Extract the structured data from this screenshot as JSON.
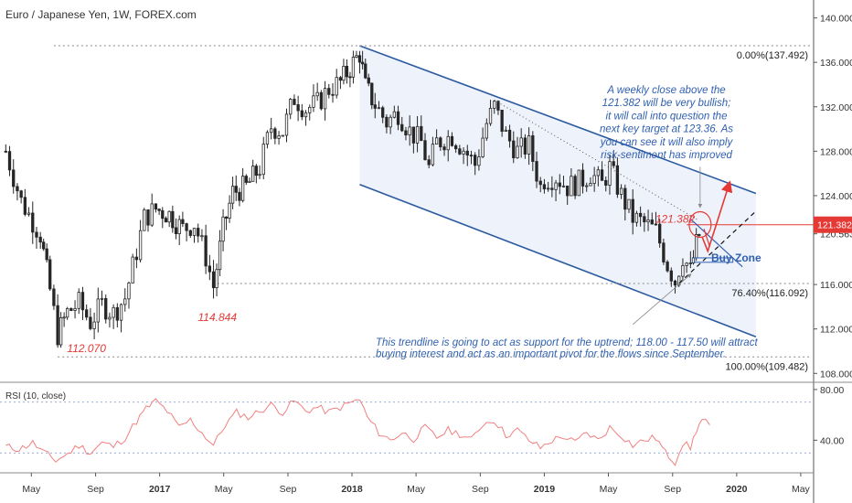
{
  "header": {
    "title": "Euro / Japanese Yen, 1W, FOREX.com"
  },
  "colors": {
    "background": "#ffffff",
    "candle": "#262626",
    "channel": "#2c5aa0",
    "channel_fill": "#eef2fb",
    "annotation_blue": "#3060b0",
    "annotation_red": "#e53935",
    "rsi_line": "#f08080",
    "rsi_levels": "#7a8fc8",
    "price_tag_bg": "#e53935",
    "axis_text": "#333333",
    "grid": "#888888"
  },
  "chart_data": [
    {
      "type": "candlestick",
      "title": "Euro / Japanese Yen, 1W, FOREX.com",
      "x_ticks": [
        "May",
        "Sep",
        "2017",
        "May",
        "Sep",
        "2018",
        "May",
        "Sep",
        "2019",
        "May",
        "Sep",
        "2020",
        "May"
      ],
      "y_ticks": [
        "140.000",
        "136.000",
        "132.000",
        "128.000",
        "124.000",
        "120.563",
        "116.000",
        "112.000",
        "108.000"
      ],
      "ylim": [
        107.2,
        141.2
      ],
      "last_price": "121.382",
      "marker_price": "120.563",
      "close_path": [
        {
          "x": 2016.2,
          "y": 128.0
        },
        {
          "x": 2016.28,
          "y": 123.5
        },
        {
          "x": 2016.38,
          "y": 120.5
        },
        {
          "x": 2016.43,
          "y": 115.5
        },
        {
          "x": 2016.47,
          "y": 111.5
        },
        {
          "x": 2016.52,
          "y": 113.5
        },
        {
          "x": 2016.58,
          "y": 114.3
        },
        {
          "x": 2016.64,
          "y": 112.6
        },
        {
          "x": 2016.7,
          "y": 114.2
        },
        {
          "x": 2016.76,
          "y": 113.4
        },
        {
          "x": 2016.82,
          "y": 114.8
        },
        {
          "x": 2016.88,
          "y": 119.0
        },
        {
          "x": 2016.92,
          "y": 122.0
        },
        {
          "x": 2016.98,
          "y": 122.8
        },
        {
          "x": 2017.05,
          "y": 122.3
        },
        {
          "x": 2017.12,
          "y": 121.0
        },
        {
          "x": 2017.18,
          "y": 121.5
        },
        {
          "x": 2017.24,
          "y": 118.5
        },
        {
          "x": 2017.28,
          "y": 115.8
        },
        {
          "x": 2017.33,
          "y": 121.0
        },
        {
          "x": 2017.38,
          "y": 124.3
        },
        {
          "x": 2017.45,
          "y": 124.8
        },
        {
          "x": 2017.52,
          "y": 126.5
        },
        {
          "x": 2017.58,
          "y": 130.2
        },
        {
          "x": 2017.64,
          "y": 129.8
        },
        {
          "x": 2017.7,
          "y": 132.8
        },
        {
          "x": 2017.76,
          "y": 131.8
        },
        {
          "x": 2017.82,
          "y": 132.3
        },
        {
          "x": 2017.88,
          "y": 133.6
        },
        {
          "x": 2017.94,
          "y": 134.2
        },
        {
          "x": 2017.99,
          "y": 135.5
        },
        {
          "x": 2018.04,
          "y": 136.8
        },
        {
          "x": 2018.07,
          "y": 133.8
        },
        {
          "x": 2018.12,
          "y": 132.2
        },
        {
          "x": 2018.18,
          "y": 130.6
        },
        {
          "x": 2018.24,
          "y": 131.5
        },
        {
          "x": 2018.3,
          "y": 129.8
        },
        {
          "x": 2018.36,
          "y": 128.8
        },
        {
          "x": 2018.4,
          "y": 126.5
        },
        {
          "x": 2018.44,
          "y": 128.8
        },
        {
          "x": 2018.52,
          "y": 129.4
        },
        {
          "x": 2018.58,
          "y": 128.2
        },
        {
          "x": 2018.64,
          "y": 126.8
        },
        {
          "x": 2018.7,
          "y": 130.5
        },
        {
          "x": 2018.74,
          "y": 132.0
        },
        {
          "x": 2018.8,
          "y": 129.4
        },
        {
          "x": 2018.86,
          "y": 128.0
        },
        {
          "x": 2018.92,
          "y": 128.5
        },
        {
          "x": 2018.98,
          "y": 124.8
        },
        {
          "x": 2019.0,
          "y": 125.5
        },
        {
          "x": 2019.06,
          "y": 125.7
        },
        {
          "x": 2019.12,
          "y": 124.8
        },
        {
          "x": 2019.18,
          "y": 125.2
        },
        {
          "x": 2019.24,
          "y": 126.0
        },
        {
          "x": 2019.3,
          "y": 125.0
        },
        {
          "x": 2019.34,
          "y": 126.5
        },
        {
          "x": 2019.4,
          "y": 124.0
        },
        {
          "x": 2019.46,
          "y": 122.0
        },
        {
          "x": 2019.52,
          "y": 121.5
        },
        {
          "x": 2019.58,
          "y": 120.8
        },
        {
          "x": 2019.64,
          "y": 117.8
        },
        {
          "x": 2019.68,
          "y": 116.3
        },
        {
          "x": 2019.72,
          "y": 118.6
        },
        {
          "x": 2019.76,
          "y": 117.2
        },
        {
          "x": 2019.79,
          "y": 119.6
        },
        {
          "x": 2019.82,
          "y": 121.3
        }
      ],
      "fibonacci_levels": [
        {
          "label": "0.00%(137.492)",
          "price": 137.492
        },
        {
          "label": "76.40%(116.092)",
          "price": 116.092
        },
        {
          "label": "100.00%(109.482)",
          "price": 109.482
        }
      ],
      "price_labels": [
        {
          "text": "112.070",
          "x": 2016.62,
          "y": 112.07
        },
        {
          "text": "114.844",
          "x": 2017.3,
          "y": 114.844
        },
        {
          "text": "121.382",
          "x": 2019.68,
          "y": 121.382
        }
      ],
      "channel": {
        "upper": [
          {
            "x": 2018.04,
            "y": 137.5
          },
          {
            "x": 2020.1,
            "y": 124.2
          }
        ],
        "lower": [
          {
            "x": 2018.04,
            "y": 125.0
          },
          {
            "x": 2020.1,
            "y": 111.3
          }
        ]
      },
      "annotations": [
        {
          "key": "top",
          "lines": [
            "A weekly close above the",
            "121.382 will be very bullish;",
            "it will call into question the",
            "next key target at 123.36. As",
            "you can see it will also imply",
            "risk-sentiment has improved"
          ]
        },
        {
          "key": "bottom",
          "lines": [
            "This trendline is going to act as support for the uptrend; 118.00 - 117.50 will attract",
            "buying interest and act as an important pivot for the flows since September."
          ]
        },
        {
          "key": "buy_zone",
          "lines": [
            "Buy Zone"
          ]
        }
      ]
    },
    {
      "type": "line",
      "title": "RSI (10, close)",
      "y_ticks": [
        "80.00",
        "40.00"
      ],
      "ylim": [
        15,
        85
      ],
      "levels": [
        70,
        30
      ],
      "series": [
        {
          "values": [
            {
              "x": 2016.2,
              "y": 35
            },
            {
              "x": 2016.27,
              "y": 33
            },
            {
              "x": 2016.34,
              "y": 38
            },
            {
              "x": 2016.4,
              "y": 30
            },
            {
              "x": 2016.46,
              "y": 24
            },
            {
              "x": 2016.52,
              "y": 29
            },
            {
              "x": 2016.58,
              "y": 36
            },
            {
              "x": 2016.64,
              "y": 30
            },
            {
              "x": 2016.7,
              "y": 38
            },
            {
              "x": 2016.76,
              "y": 35
            },
            {
              "x": 2016.82,
              "y": 42
            },
            {
              "x": 2016.88,
              "y": 55
            },
            {
              "x": 2016.93,
              "y": 65
            },
            {
              "x": 2016.98,
              "y": 71
            },
            {
              "x": 2017.04,
              "y": 63
            },
            {
              "x": 2017.1,
              "y": 50
            },
            {
              "x": 2017.16,
              "y": 56
            },
            {
              "x": 2017.22,
              "y": 46
            },
            {
              "x": 2017.28,
              "y": 36
            },
            {
              "x": 2017.34,
              "y": 52
            },
            {
              "x": 2017.4,
              "y": 62
            },
            {
              "x": 2017.46,
              "y": 58
            },
            {
              "x": 2017.52,
              "y": 63
            },
            {
              "x": 2017.58,
              "y": 68
            },
            {
              "x": 2017.64,
              "y": 62
            },
            {
              "x": 2017.7,
              "y": 71
            },
            {
              "x": 2017.76,
              "y": 63
            },
            {
              "x": 2017.82,
              "y": 66
            },
            {
              "x": 2017.88,
              "y": 62
            },
            {
              "x": 2017.94,
              "y": 66
            },
            {
              "x": 2018.0,
              "y": 70
            },
            {
              "x": 2018.04,
              "y": 72
            },
            {
              "x": 2018.08,
              "y": 58
            },
            {
              "x": 2018.14,
              "y": 46
            },
            {
              "x": 2018.2,
              "y": 40
            },
            {
              "x": 2018.26,
              "y": 46
            },
            {
              "x": 2018.32,
              "y": 41
            },
            {
              "x": 2018.38,
              "y": 50
            },
            {
              "x": 2018.44,
              "y": 42
            },
            {
              "x": 2018.5,
              "y": 48
            },
            {
              "x": 2018.56,
              "y": 45
            },
            {
              "x": 2018.62,
              "y": 40
            },
            {
              "x": 2018.68,
              "y": 53
            },
            {
              "x": 2018.74,
              "y": 56
            },
            {
              "x": 2018.8,
              "y": 44
            },
            {
              "x": 2018.86,
              "y": 48
            },
            {
              "x": 2018.92,
              "y": 40
            },
            {
              "x": 2018.98,
              "y": 34
            },
            {
              "x": 2019.04,
              "y": 40
            },
            {
              "x": 2019.1,
              "y": 43
            },
            {
              "x": 2019.16,
              "y": 38
            },
            {
              "x": 2019.22,
              "y": 46
            },
            {
              "x": 2019.28,
              "y": 40
            },
            {
              "x": 2019.34,
              "y": 50
            },
            {
              "x": 2019.4,
              "y": 44
            },
            {
              "x": 2019.46,
              "y": 36
            },
            {
              "x": 2019.52,
              "y": 40
            },
            {
              "x": 2019.58,
              "y": 42
            },
            {
              "x": 2019.63,
              "y": 30
            },
            {
              "x": 2019.68,
              "y": 23
            },
            {
              "x": 2019.72,
              "y": 38
            },
            {
              "x": 2019.76,
              "y": 34
            },
            {
              "x": 2019.79,
              "y": 48
            },
            {
              "x": 2019.82,
              "y": 56
            },
            {
              "x": 2019.86,
              "y": 52
            }
          ]
        }
      ]
    }
  ]
}
